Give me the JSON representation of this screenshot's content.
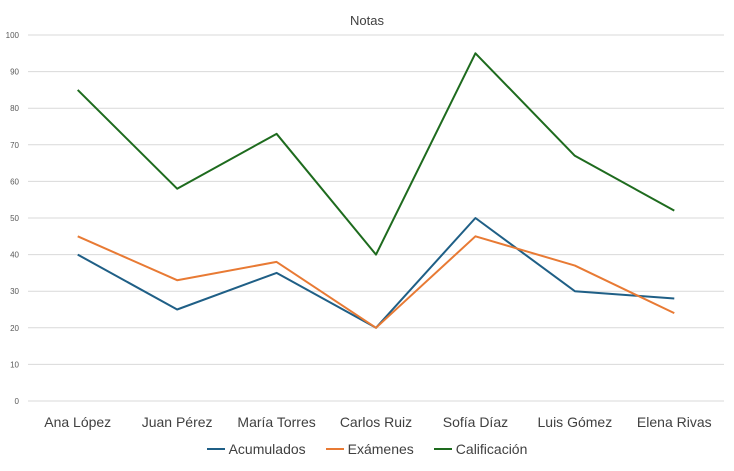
{
  "chart_data": {
    "type": "line",
    "title": "Notas",
    "categories": [
      "Ana López",
      "Juan Pérez",
      "María Torres",
      "Carlos Ruiz",
      "Sofía Díaz",
      "Luis Gómez",
      "Elena Rivas"
    ],
    "series": [
      {
        "name": "Acumulados",
        "color": "#1f5f86",
        "values": [
          40,
          25,
          35,
          20,
          50,
          30,
          28
        ]
      },
      {
        "name": "Exámenes",
        "color": "#e87a34",
        "values": [
          45,
          33,
          38,
          20,
          45,
          37,
          24
        ]
      },
      {
        "name": "Calificación",
        "color": "#1e6b1e",
        "values": [
          85,
          58,
          73,
          40,
          95,
          67,
          52
        ]
      }
    ],
    "y_ticks": [
      "0",
      "10",
      "20",
      "30",
      "40",
      "50",
      "60",
      "70",
      "80",
      "90",
      "100"
    ],
    "ylim": [
      0,
      100
    ],
    "grid": true,
    "legend_position": "bottom"
  }
}
